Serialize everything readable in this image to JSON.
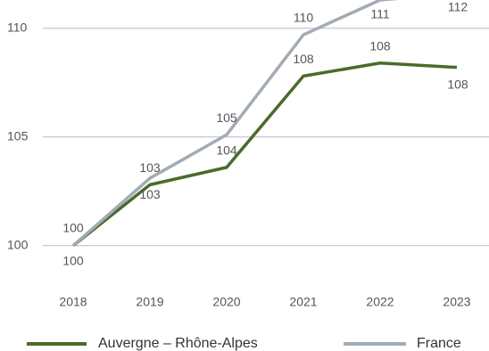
{
  "chart_data": {
    "type": "line",
    "categories": [
      "2018",
      "2019",
      "2020",
      "2021",
      "2022",
      "2023"
    ],
    "series": [
      {
        "name": "Auvergne – Rhône-Alpes",
        "color": "#4a6b2a",
        "values": [
          100,
          102.8,
          103.6,
          107.8,
          108.4,
          108.2
        ],
        "value_labels": [
          "100",
          "103",
          "104",
          "108",
          "108",
          "108"
        ]
      },
      {
        "name": "France",
        "color": "#a3abb5",
        "values": [
          100,
          103.1,
          105.1,
          109.7,
          111.3,
          111.6
        ],
        "value_labels": [
          "100",
          "103",
          "105",
          "110",
          "111",
          "112"
        ]
      }
    ],
    "ylim": [
      98.5,
      111.3
    ],
    "yticks": [
      100,
      105,
      110
    ],
    "grid": true
  }
}
